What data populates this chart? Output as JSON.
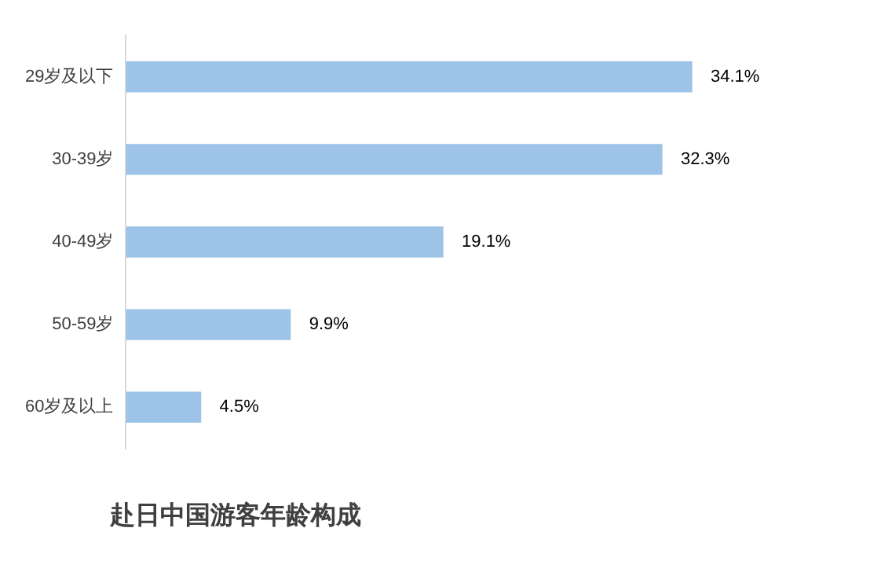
{
  "chart_data": {
    "type": "bar",
    "orientation": "horizontal",
    "title": "赴日中国游客年龄构成",
    "categories": [
      "29岁及以下",
      "30-39岁",
      "40-49岁",
      "50-59岁",
      "60岁及以上"
    ],
    "values": [
      34.1,
      32.3,
      19.1,
      9.9,
      4.5
    ],
    "value_labels": [
      "34.1%",
      "32.3%",
      "19.1%",
      "9.9%",
      "4.5%"
    ],
    "color": "#9dc3e6",
    "tick_labels": "y",
    "legend": false
  }
}
